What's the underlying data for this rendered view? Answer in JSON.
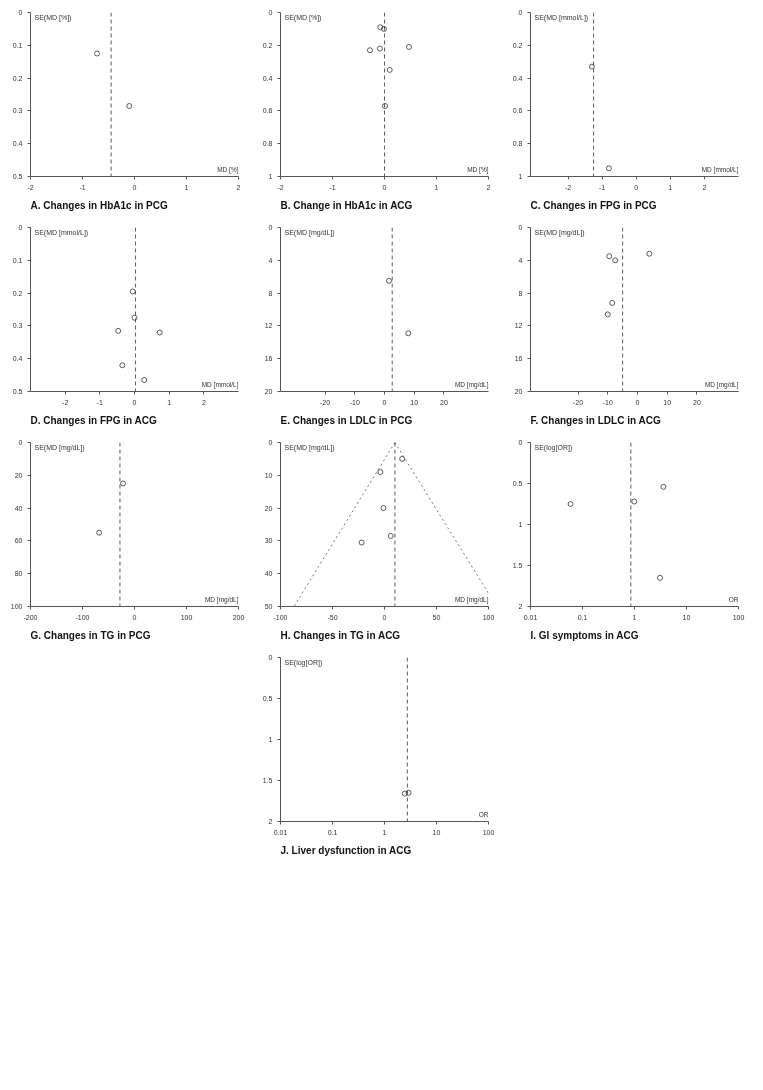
{
  "chart_data": [
    {
      "type": "scatter",
      "title": "A. Changes in HbA1c in PCG",
      "xlabel": "MD [%]",
      "ylabel": "SE(MD [%])",
      "xlim": [
        -2,
        2
      ],
      "xticks": [
        -2,
        -1,
        0,
        1,
        2
      ],
      "ylim": [
        0.5,
        0
      ],
      "yticks": [
        0,
        0.1,
        0.2,
        0.3,
        0.4,
        0.5
      ],
      "grid": false,
      "marker": "circle",
      "ref_lines": [
        {
          "axis": "x",
          "value": -0.45,
          "line_style": "dashed",
          "color": "#333333"
        }
      ],
      "series": [
        {
          "type": "scatter",
          "color": "#333333",
          "x": [
            -0.72,
            -0.1
          ],
          "values": [
            0.125,
            0.285
          ]
        }
      ]
    },
    {
      "type": "scatter",
      "title": "B. Change in HbA1c in ACG",
      "xlabel": "MD [%]",
      "ylabel": "SE(MD [%])",
      "xlim": [
        -2,
        2
      ],
      "xticks": [
        -2,
        -1,
        0,
        1,
        2
      ],
      "ylim": [
        1,
        0
      ],
      "yticks": [
        0,
        0.2,
        0.4,
        0.6,
        0.8,
        1
      ],
      "grid": false,
      "marker": "circle",
      "ref_lines": [
        {
          "axis": "x",
          "value": 0,
          "line_style": "dashed",
          "color": "#333333"
        }
      ],
      "series": [
        {
          "type": "scatter",
          "color": "#333333",
          "x": [
            -0.08,
            -0.01,
            -0.09,
            -0.28,
            0.47,
            0.1,
            0.01
          ],
          "values": [
            0.09,
            0.1,
            0.22,
            0.23,
            0.21,
            0.35,
            0.57
          ]
        }
      ]
    },
    {
      "type": "scatter",
      "title": "C. Changes in FPG in PCG",
      "xlabel": "MD [mmol/L]",
      "ylabel": "SE(MD [mmol/L])",
      "xlim": [
        -3.1,
        3
      ],
      "xticks": [
        -2,
        -1,
        0,
        1,
        2
      ],
      "ylim": [
        1,
        0
      ],
      "yticks": [
        0,
        0.2,
        0.4,
        0.6,
        0.8,
        1
      ],
      "grid": false,
      "marker": "circle",
      "ref_lines": [
        {
          "axis": "x",
          "value": -1.25,
          "line_style": "dashed",
          "color": "#333333"
        }
      ],
      "series": [
        {
          "type": "scatter",
          "color": "#333333",
          "x": [
            -1.3,
            -0.8
          ],
          "values": [
            0.33,
            0.95
          ]
        }
      ]
    },
    {
      "type": "scatter",
      "title": "D. Changes in FPG in ACG",
      "xlabel": "MD [mmol/L]",
      "ylabel": "SE(MD [mmol/L])",
      "xlim": [
        -3,
        3
      ],
      "xticks": [
        -2,
        -1,
        0,
        1,
        2
      ],
      "ylim": [
        0.5,
        0
      ],
      "yticks": [
        0,
        0.1,
        0.2,
        0.3,
        0.4,
        0.5
      ],
      "grid": false,
      "marker": "circle",
      "ref_lines": [
        {
          "axis": "x",
          "value": 0.03,
          "line_style": "dashed",
          "color": "#333333"
        }
      ],
      "series": [
        {
          "type": "scatter",
          "color": "#333333",
          "x": [
            -0.05,
            0.0,
            -0.47,
            0.73,
            -0.35,
            0.28
          ],
          "values": [
            0.195,
            0.275,
            0.315,
            0.32,
            0.42,
            0.465
          ]
        }
      ]
    },
    {
      "type": "scatter",
      "title": "E. Changes in LDLC in PCG",
      "xlabel": "MD [mg/dL]",
      "ylabel": "SE(MD [mg/dL])",
      "xlim": [
        -35,
        35
      ],
      "xticks": [
        -20,
        -10,
        0,
        10,
        20
      ],
      "ylim": [
        20,
        0
      ],
      "yticks": [
        0,
        4,
        8,
        12,
        16,
        20
      ],
      "grid": false,
      "marker": "circle",
      "ref_lines": [
        {
          "axis": "x",
          "value": 2.6,
          "line_style": "dashed",
          "color": "#333333"
        }
      ],
      "series": [
        {
          "type": "scatter",
          "color": "#333333",
          "x": [
            1.5,
            8
          ],
          "values": [
            6.5,
            12.9
          ]
        }
      ]
    },
    {
      "type": "scatter",
      "title": "F. Changes in LDLC in ACG",
      "xlabel": "MD [mg/dL]",
      "ylabel": "SE(MD [mg/dL])",
      "xlim": [
        -36,
        34
      ],
      "xticks": [
        -20,
        -10,
        0,
        10,
        20
      ],
      "ylim": [
        20,
        0
      ],
      "yticks": [
        0,
        4,
        8,
        12,
        16,
        20
      ],
      "grid": false,
      "marker": "circle",
      "ref_lines": [
        {
          "axis": "x",
          "value": -5,
          "line_style": "dashed",
          "color": "#333333"
        }
      ],
      "series": [
        {
          "type": "scatter",
          "color": "#333333",
          "x": [
            -9.5,
            -7.5,
            4,
            -8.5,
            -10
          ],
          "values": [
            3.5,
            4.0,
            3.2,
            9.2,
            10.6
          ]
        }
      ]
    },
    {
      "type": "scatter",
      "title": "G. Changes in TG in PCG",
      "xlabel": "MD [mg/dL]",
      "ylabel": "SE(MD [mg/dL])",
      "xlim": [
        -200,
        200
      ],
      "xticks": [
        -200,
        -100,
        0,
        100,
        200
      ],
      "ylim": [
        100,
        0
      ],
      "yticks": [
        0,
        20,
        40,
        60,
        80,
        100
      ],
      "grid": false,
      "marker": "circle",
      "ref_lines": [
        {
          "axis": "x",
          "value": -28,
          "line_style": "dashed",
          "color": "#333333"
        }
      ],
      "series": [
        {
          "type": "scatter",
          "color": "#333333",
          "x": [
            -68,
            -22
          ],
          "values": [
            55,
            25
          ]
        }
      ]
    },
    {
      "type": "scatter",
      "title": "H. Changes in TG in ACG",
      "xlabel": "MD [mg/dL]",
      "ylabel": "SE(MD [mg/dL])",
      "xlim": [
        -100,
        100
      ],
      "xticks": [
        -100,
        -50,
        0,
        50,
        100
      ],
      "ylim": [
        50,
        0
      ],
      "yticks": [
        0,
        10,
        20,
        30,
        40,
        50
      ],
      "grid": false,
      "marker": "circle",
      "ref_lines": [
        {
          "axis": "x",
          "value": 10,
          "line_style": "dashed",
          "color": "#333333"
        }
      ],
      "series": [
        {
          "type": "scatter",
          "color": "#333333",
          "x": [
            17,
            -4,
            -1,
            6,
            -22
          ],
          "values": [
            5,
            9,
            20,
            28.5,
            30.5
          ]
        },
        {
          "type": "line",
          "marker": "none",
          "color": "#555555",
          "line_style": "dotted",
          "x": [
            10,
            -87
          ],
          "values": [
            0,
            50
          ]
        },
        {
          "type": "line",
          "marker": "none",
          "color": "#555555",
          "line_style": "dotted",
          "x": [
            10,
            100
          ],
          "values": [
            0,
            46
          ]
        }
      ]
    },
    {
      "type": "scatter",
      "title": "I. GI symptoms in ACG",
      "xlabel": "OR",
      "ylabel": "SE(log[OR])",
      "log": "x",
      "xlim": [
        0.01,
        100
      ],
      "xticks": [
        0.01,
        0.1,
        1,
        10,
        100
      ],
      "ylim": [
        2,
        0
      ],
      "yticks": [
        0,
        0.5,
        1,
        1.5,
        2
      ],
      "grid": false,
      "marker": "circle",
      "ref_lines": [
        {
          "axis": "x",
          "value": 0.85,
          "line_style": "dashed",
          "color": "#333333"
        }
      ],
      "series": [
        {
          "type": "scatter",
          "color": "#333333",
          "x": [
            0.059,
            0.99,
            3.6,
            3.1
          ],
          "values": [
            0.75,
            0.72,
            0.54,
            1.65
          ]
        }
      ]
    },
    {
      "type": "scatter",
      "title": "J. Liver dysfunction in ACG",
      "xlabel": "OR",
      "ylabel": "SE(log[OR])",
      "log": "x",
      "xlim": [
        0.01,
        100
      ],
      "xticks": [
        0.01,
        0.1,
        1,
        10,
        100
      ],
      "ylim": [
        2,
        0
      ],
      "yticks": [
        0,
        0.5,
        1,
        1.5,
        2
      ],
      "grid": false,
      "marker": "circle",
      "ref_lines": [
        {
          "axis": "x",
          "value": 2.75,
          "line_style": "dashed",
          "color": "#333333"
        }
      ],
      "series": [
        {
          "type": "scatter",
          "color": "#333333",
          "x": [
            2.45,
            2.9
          ],
          "values": [
            1.66,
            1.65
          ]
        }
      ]
    }
  ]
}
